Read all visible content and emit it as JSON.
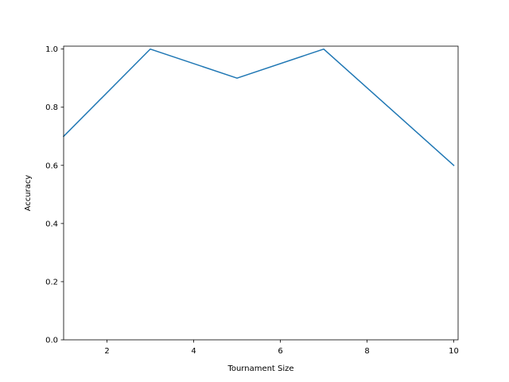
{
  "chart_data": {
    "type": "line",
    "title": "",
    "xlabel": "Tournament Size",
    "ylabel": "Accuracy",
    "xlim": [
      1,
      10.1
    ],
    "ylim": [
      0.0,
      1.01
    ],
    "xticks": [
      2,
      4,
      6,
      8,
      10
    ],
    "xtick_labels": [
      "2",
      "4",
      "6",
      "8",
      "10"
    ],
    "yticks": [
      0.0,
      0.2,
      0.4,
      0.6,
      0.8,
      1.0
    ],
    "ytick_labels": [
      "0.0",
      "0.2",
      "0.4",
      "0.6",
      "0.8",
      "1.0"
    ],
    "grid": false,
    "series": [
      {
        "x": [
          1,
          3,
          5,
          7,
          10
        ],
        "y": [
          0.7,
          1.0,
          0.9,
          1.0,
          0.6
        ],
        "color": "#1f77b4"
      }
    ]
  }
}
